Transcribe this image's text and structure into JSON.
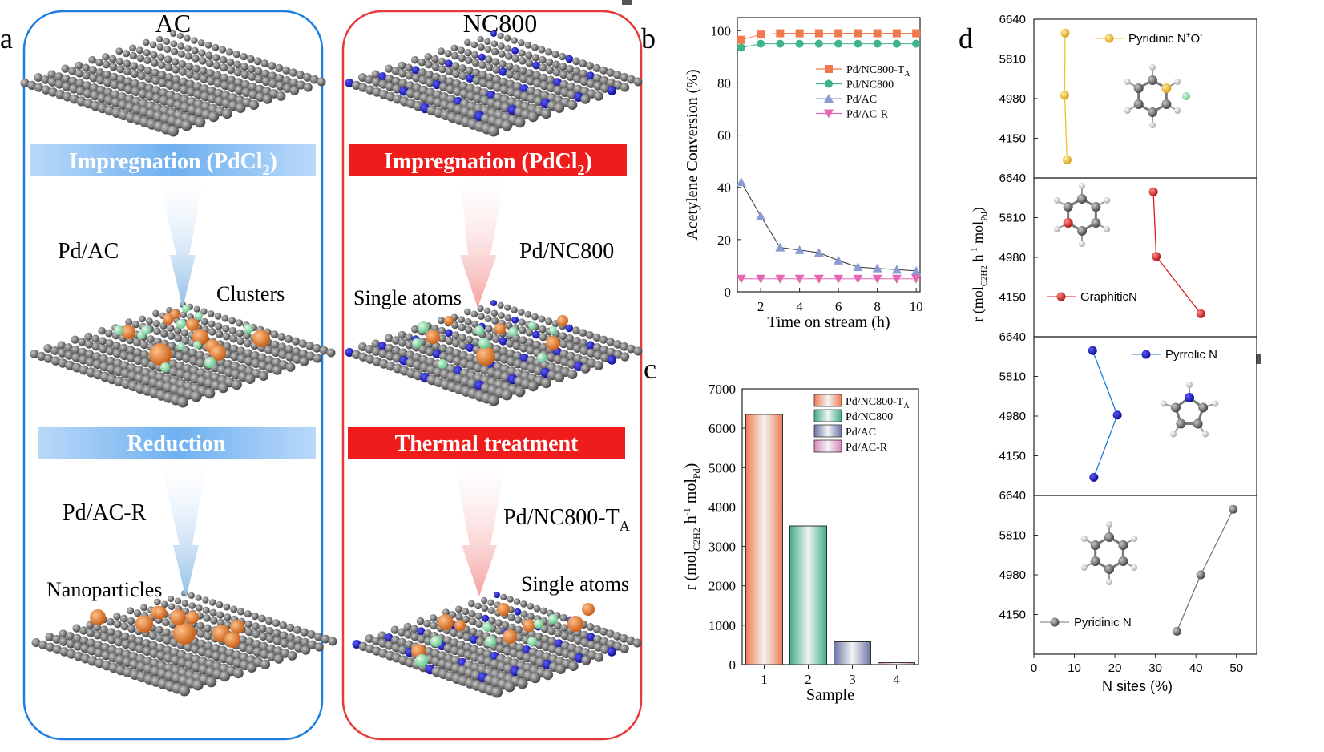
{
  "panel_labels": {
    "a": "a",
    "b": "b",
    "c": "c",
    "d": "d"
  },
  "scheme": {
    "left_title": "AC",
    "right_title": "NC800",
    "left_step1": "Impregnation (PdCl",
    "left_step1_sub": "2",
    "left_step1_end": ")",
    "right_step1": "Impregnation (PdCl",
    "right_step1_sub": "2",
    "right_step1_end": ")",
    "left_step2": "Reduction",
    "right_step2": "Thermal treatment",
    "left_mid_label": "Pd/AC",
    "right_mid_label": "Pd/NC800",
    "left_mid_note": "Clusters",
    "right_mid_note": "Single atoms",
    "left_bottom_label": "Pd/AC-R",
    "right_bottom_label": "Pd/NC800-T",
    "right_bottom_label_sub": "A",
    "left_bottom_note": "Nanoparticles",
    "right_bottom_note": "Single atoms",
    "colors": {
      "left_frame": "#1f7fe0",
      "right_frame": "#e83a3a",
      "left_banner": "#7ab6f2",
      "right_banner": "#f01c1c",
      "support": "#6b6b6b",
      "nitrogen": "#1414c8",
      "pd": "#e07a28",
      "cl": "#8fdcaa"
    }
  },
  "chart_data": [
    {
      "id": "b",
      "type": "line",
      "title": "",
      "xlabel": "Time on stream (h)",
      "ylabel": "Acetylene Conversion (%)",
      "xlim": [
        0.8,
        10.2
      ],
      "ylim": [
        0,
        105
      ],
      "xticks": [
        2,
        4,
        6,
        8,
        10
      ],
      "yticks": [
        0,
        20,
        40,
        60,
        80,
        100
      ],
      "x": [
        1,
        2,
        3,
        4,
        5,
        6,
        7,
        8,
        9,
        10
      ],
      "series": [
        {
          "name": "Pd/NC800-T",
          "name_sub": "A",
          "marker": "square",
          "color": "#f07a4e",
          "values": [
            96.5,
            98.5,
            99,
            99,
            99,
            99,
            99,
            99,
            99,
            99
          ]
        },
        {
          "name": "Pd/NC800",
          "name_sub": "",
          "marker": "circle",
          "color": "#3fb38a",
          "values": [
            93.5,
            95,
            95,
            95,
            95,
            95,
            95,
            95,
            95,
            95
          ]
        },
        {
          "name": "Pd/AC",
          "name_sub": "",
          "marker": "triangle-up",
          "color": "#8b9bd4",
          "values": [
            42,
            29,
            17,
            16,
            15,
            12,
            9.5,
            9,
            8.5,
            8
          ]
        },
        {
          "name": "Pd/AC-R",
          "name_sub": "",
          "marker": "triangle-down",
          "color": "#e666b4",
          "values": [
            5,
            5,
            5,
            5,
            5,
            5,
            5,
            5,
            5,
            5
          ]
        }
      ]
    },
    {
      "id": "c",
      "type": "bar",
      "title": "",
      "xlabel": "Sample",
      "ylabel": "r (mol",
      "ylabel_sub": "C2H2",
      "ylabel_mid": " h",
      "ylabel_sup": "-1",
      "ylabel_end": " mol",
      "ylabel_sub2": "Pd",
      "ylabel_close": ")",
      "categories": [
        "1",
        "2",
        "3",
        "4"
      ],
      "ylim": [
        0,
        7000
      ],
      "yticks": [
        0,
        1000,
        2000,
        3000,
        4000,
        5000,
        6000,
        7000
      ],
      "values": [
        6350,
        3520,
        580,
        50
      ],
      "colors": [
        "#ef7d53",
        "#3fae86",
        "#6b74a8",
        "#d987b9"
      ],
      "legend": [
        "Pd/NC800-T",
        "Pd/NC800",
        "Pd/AC",
        "Pd/AC-R"
      ],
      "legend_subs": [
        "A",
        "",
        "",
        ""
      ]
    },
    {
      "id": "d",
      "type": "scatter",
      "xlabel": "N sites (%)",
      "ylabel": "r (mol",
      "ylabel_sub": "C2H2",
      "ylabel_mid": " h",
      "ylabel_sup": "-1",
      "ylabel_end": " mol",
      "ylabel_sub2": "Pd",
      "ylabel_close": ")",
      "xlim": [
        0,
        55
      ],
      "xticks": [
        0,
        10,
        20,
        30,
        40,
        50
      ],
      "ylim": [
        3320,
        6640
      ],
      "yticks": [
        4150,
        4980,
        5810,
        6640
      ],
      "subplots": [
        {
          "name": "Pyridinic N",
          "name_sup": "+",
          "name_end": "O",
          "name_sup2": "-",
          "color": "#f2c230",
          "x": [
            7.7,
            7.6,
            8.2
          ],
          "y": [
            6350,
            5050,
            3700
          ]
        },
        {
          "name": "GraphiticN",
          "name_sup": "",
          "name_end": "",
          "name_sup2": "",
          "color": "#e01c1c",
          "x": [
            29.5,
            30.2,
            41.2
          ],
          "y": [
            6350,
            5000,
            3800
          ]
        },
        {
          "name": "Pyrrolic N",
          "name_sup": "",
          "name_end": "",
          "name_sup2": "",
          "color": "#1a78e0",
          "x": [
            14.5,
            20.6,
            14.8
          ],
          "y": [
            6350,
            5000,
            3700
          ]
        },
        {
          "name": "Pyridinic N",
          "name_sup": "",
          "name_end": "",
          "name_sup2": "",
          "color": "#777777",
          "x": [
            35.3,
            41.2,
            49.2
          ],
          "y": [
            3800,
            4980,
            6350
          ]
        }
      ]
    }
  ]
}
